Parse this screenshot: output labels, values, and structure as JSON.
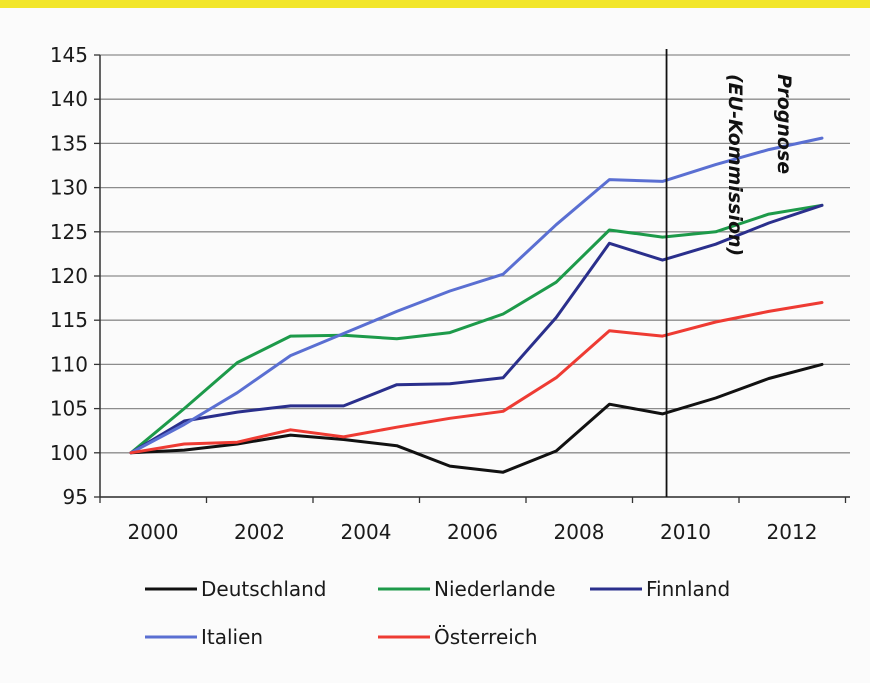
{
  "chart_data": {
    "type": "line",
    "title": "",
    "xlabel": "",
    "ylabel": "",
    "x": [
      2000,
      2001,
      2002,
      2003,
      2004,
      2005,
      2006,
      2007,
      2008,
      2009,
      2010,
      2011,
      2012,
      2013
    ],
    "xlim": [
      2000,
      2013
    ],
    "xticks": [
      "2000",
      "2002",
      "2004",
      "2006",
      "2008",
      "2010",
      "2012"
    ],
    "ylim": [
      95,
      145
    ],
    "yticks": [
      "95",
      "100",
      "105",
      "110",
      "115",
      "120",
      "125",
      "130",
      "135",
      "140",
      "145"
    ],
    "grid": "horizontal",
    "annotation": {
      "line1": "Prognose",
      "line2": "(EU-Kommission)",
      "x": 2010
    },
    "legend_position": "bottom",
    "series": [
      {
        "name": "Deutschland",
        "color": "#111111",
        "values": [
          100,
          100.3,
          101,
          102,
          101.5,
          100.8,
          98.5,
          97.8,
          100.2,
          105.5,
          104.4,
          106.2,
          108.4,
          110
        ]
      },
      {
        "name": "Niederlande",
        "color": "#1d9a4a",
        "values": [
          100,
          105,
          110.2,
          113.2,
          113.3,
          112.9,
          113.6,
          115.7,
          119.3,
          125.2,
          124.4,
          125,
          127,
          128
        ]
      },
      {
        "name": "Finnland",
        "color": "#2a2f8c",
        "values": [
          100,
          103.6,
          104.6,
          105.3,
          105.3,
          107.7,
          107.8,
          108.5,
          115.3,
          123.7,
          121.8,
          123.6,
          126,
          128
        ]
      },
      {
        "name": "Italien",
        "color": "#5a6fd2",
        "values": [
          100,
          103.2,
          106.8,
          111,
          113.5,
          116,
          118.3,
          120.2,
          125.8,
          130.9,
          130.7,
          132.6,
          134.3,
          135.6
        ]
      },
      {
        "name": "Österreich",
        "color": "#ee3b33",
        "values": [
          100,
          101,
          101.2,
          102.6,
          101.8,
          102.9,
          103.9,
          104.7,
          108.5,
          113.8,
          113.2,
          114.8,
          116,
          117
        ]
      }
    ]
  }
}
